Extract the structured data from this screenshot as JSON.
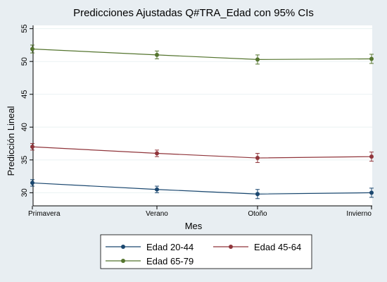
{
  "chart_data": {
    "type": "line",
    "title": "Predicciones Ajustadas Q#TRA_Edad con 95% CIs",
    "xlabel": "Mes",
    "ylabel": "Predicción Lineal",
    "categories": [
      "Primavera",
      "Verano",
      "Otoño",
      "Invierno"
    ],
    "yticks": [
      30,
      35,
      40,
      45,
      50,
      55
    ],
    "ylim": [
      28,
      55.5
    ],
    "grid": true,
    "legend_position": "bottom",
    "series": [
      {
        "name": "Edad 20-44",
        "color": "#1a476f",
        "values": [
          31.5,
          30.5,
          29.8,
          30.0
        ],
        "ci_low": [
          31.0,
          30.0,
          29.1,
          29.3
        ],
        "ci_high": [
          32.0,
          31.0,
          30.5,
          30.7
        ]
      },
      {
        "name": "Edad 45-64",
        "color": "#90353b",
        "values": [
          37.0,
          36.0,
          35.3,
          35.5
        ],
        "ci_low": [
          36.5,
          35.5,
          34.6,
          34.8
        ],
        "ci_high": [
          37.5,
          36.5,
          36.0,
          36.2
        ]
      },
      {
        "name": "Edad 65-79",
        "color": "#55752f",
        "values": [
          51.9,
          51.0,
          50.3,
          50.4
        ],
        "ci_low": [
          51.3,
          50.4,
          49.6,
          49.7
        ],
        "ci_high": [
          52.5,
          51.6,
          51.0,
          51.1
        ]
      }
    ]
  }
}
